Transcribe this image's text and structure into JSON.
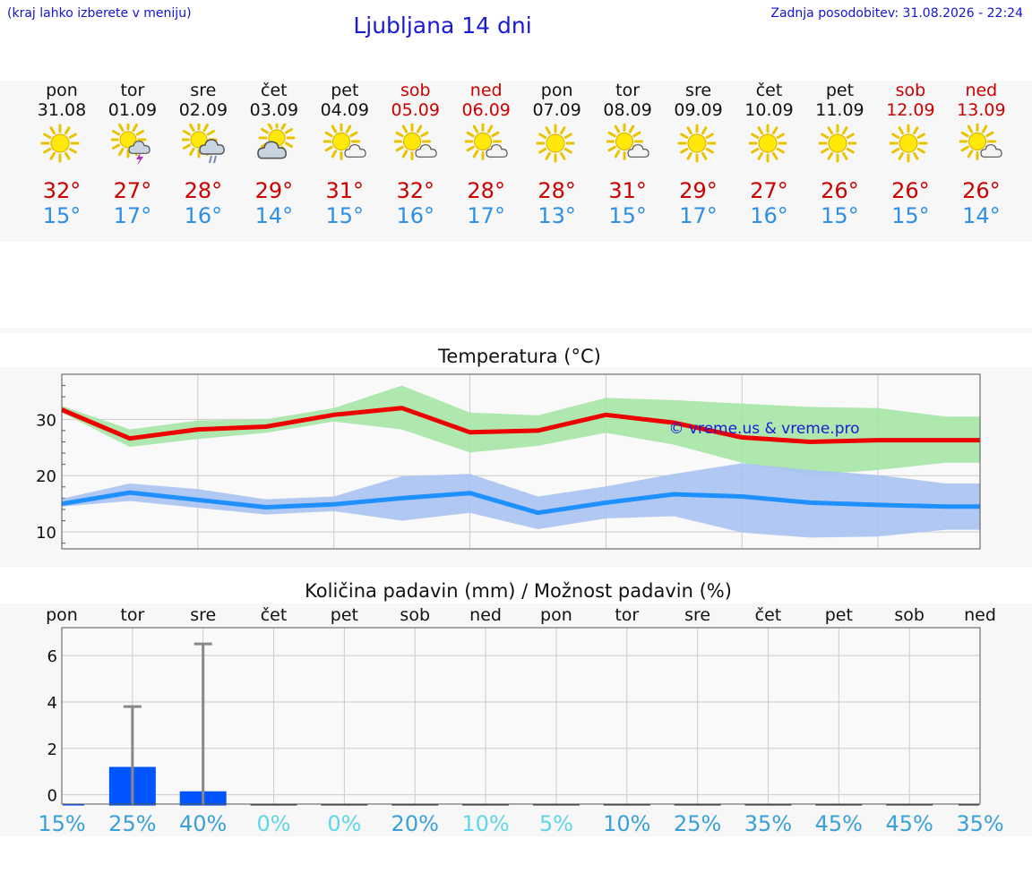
{
  "header": {
    "hint": "(kraj lahko izberete v meniju)",
    "title": "Ljubljana 14 dni",
    "updated": "Zadnja posodobitev: 31.08.2026 - 22:24"
  },
  "colors": {
    "link_blue": "#1414d4",
    "max_temp": "#cc0000",
    "min_temp": "#2e8fe6",
    "weekend": "#cc0000",
    "band_bg": "#f7f7f7",
    "max_line": "#ee0000",
    "max_range": "#a5e6a5",
    "min_line": "#1e90ff",
    "min_range": "#a8c2f2",
    "precip_bar": "#0055ff",
    "error_bar": "#888888"
  },
  "days": [
    {
      "name": "pon",
      "date": "31.08",
      "weekend": false,
      "icon": "sun-icon",
      "max": "32°",
      "min": "15°"
    },
    {
      "name": "tor",
      "date": "01.09",
      "weekend": false,
      "icon": "thunderstorm-icon",
      "max": "27°",
      "min": "17°"
    },
    {
      "name": "sre",
      "date": "02.09",
      "weekend": false,
      "icon": "sun-cloud-rain-icon",
      "max": "28°",
      "min": "16°"
    },
    {
      "name": "čet",
      "date": "03.09",
      "weekend": false,
      "icon": "sun-big-cloud-icon",
      "max": "29°",
      "min": "14°"
    },
    {
      "name": "pet",
      "date": "04.09",
      "weekend": false,
      "icon": "sun-small-cloud-icon",
      "max": "31°",
      "min": "15°"
    },
    {
      "name": "sob",
      "date": "05.09",
      "weekend": true,
      "icon": "sun-small-cloud-icon",
      "max": "32°",
      "min": "16°"
    },
    {
      "name": "ned",
      "date": "06.09",
      "weekend": true,
      "icon": "sun-small-cloud-icon",
      "max": "28°",
      "min": "17°"
    },
    {
      "name": "pon",
      "date": "07.09",
      "weekend": false,
      "icon": "sun-icon",
      "max": "28°",
      "min": "13°"
    },
    {
      "name": "tor",
      "date": "08.09",
      "weekend": false,
      "icon": "sun-small-cloud-icon",
      "max": "31°",
      "min": "15°"
    },
    {
      "name": "sre",
      "date": "09.09",
      "weekend": false,
      "icon": "sun-icon",
      "max": "29°",
      "min": "17°"
    },
    {
      "name": "čet",
      "date": "10.09",
      "weekend": false,
      "icon": "sun-icon",
      "max": "27°",
      "min": "16°"
    },
    {
      "name": "pet",
      "date": "11.09",
      "weekend": false,
      "icon": "sun-icon",
      "max": "26°",
      "min": "15°"
    },
    {
      "name": "sob",
      "date": "12.09",
      "weekend": true,
      "icon": "sun-icon",
      "max": "26°",
      "min": "15°"
    },
    {
      "name": "ned",
      "date": "13.09",
      "weekend": true,
      "icon": "sun-small-cloud-icon",
      "max": "26°",
      "min": "14°"
    }
  ],
  "chart_data": [
    {
      "type": "line",
      "title": "Temperatura (°C)",
      "watermark": "© vreme.us & vreme.pro",
      "x": [
        "pon",
        "tor",
        "sre",
        "čet",
        "pet",
        "sob",
        "ned",
        "pon",
        "tor",
        "sre",
        "čet",
        "pet",
        "sob",
        "ned"
      ],
      "ylim": [
        7,
        38
      ],
      "yticks": [
        10,
        20,
        30
      ],
      "grid": true,
      "x_end": 13.5,
      "series": [
        {
          "key": "max",
          "values": [
            31.7,
            26.6,
            28.2,
            28.7,
            30.8,
            32.0,
            27.7,
            28.0,
            30.8,
            29.4,
            26.8,
            26.0,
            26.3,
            26.3
          ],
          "range_high": [
            32.4,
            28.2,
            29.8,
            30.0,
            32.0,
            36.0,
            31.2,
            30.7,
            33.8,
            33.4,
            32.8,
            32.2,
            32.0,
            30.5
          ],
          "range_low": [
            31.2,
            25.1,
            26.5,
            27.6,
            29.6,
            28.2,
            24.1,
            25.3,
            27.6,
            25.5,
            22.3,
            20.1,
            21.0,
            22.3
          ]
        },
        {
          "key": "min",
          "values": [
            15.0,
            17.0,
            15.7,
            14.4,
            14.9,
            16.0,
            16.9,
            13.4,
            15.2,
            16.7,
            16.3,
            15.2,
            14.8,
            14.5
          ],
          "range_high": [
            15.9,
            18.6,
            17.6,
            15.8,
            16.3,
            19.9,
            20.3,
            16.3,
            18.1,
            20.3,
            22.2,
            21.0,
            20.1,
            18.6
          ],
          "range_low": [
            14.5,
            15.5,
            14.3,
            13.1,
            13.7,
            12.0,
            13.4,
            10.5,
            12.4,
            12.8,
            9.9,
            9.0,
            9.2,
            10.4
          ]
        }
      ]
    },
    {
      "type": "bar",
      "title": "Količina padavin (mm) / Možnost padavin (%)",
      "categories": [
        "pon",
        "tor",
        "sre",
        "čet",
        "pet",
        "sob",
        "ned",
        "pon",
        "tor",
        "sre",
        "čet",
        "pet",
        "sob",
        "ned"
      ],
      "values": [
        0,
        1.2,
        0.15,
        0,
        0,
        0,
        0,
        0,
        0,
        0,
        0,
        0,
        0,
        0
      ],
      "error_high": [
        0,
        3.8,
        6.5,
        0,
        0,
        0,
        0,
        0,
        0,
        0,
        0,
        0,
        0,
        0
      ],
      "ylim": [
        -0.4,
        7.2
      ],
      "yticks": [
        0,
        2,
        4,
        6
      ],
      "grid": true,
      "probability": [
        {
          "label": "15%",
          "color": "#3aa0d8"
        },
        {
          "label": "25%",
          "color": "#3aa0d8"
        },
        {
          "label": "40%",
          "color": "#3aa0d8"
        },
        {
          "label": "0%",
          "color": "#5fd6e6"
        },
        {
          "label": "0%",
          "color": "#5fd6e6"
        },
        {
          "label": "20%",
          "color": "#3aa0d8"
        },
        {
          "label": "10%",
          "color": "#5fd6e6"
        },
        {
          "label": "5%",
          "color": "#5fd6e6"
        },
        {
          "label": "10%",
          "color": "#3aa0d8"
        },
        {
          "label": "25%",
          "color": "#3aa0d8"
        },
        {
          "label": "35%",
          "color": "#3aa0d8"
        },
        {
          "label": "45%",
          "color": "#3aa0d8"
        },
        {
          "label": "45%",
          "color": "#3aa0d8"
        },
        {
          "label": "35%",
          "color": "#3aa0d8"
        }
      ]
    }
  ]
}
